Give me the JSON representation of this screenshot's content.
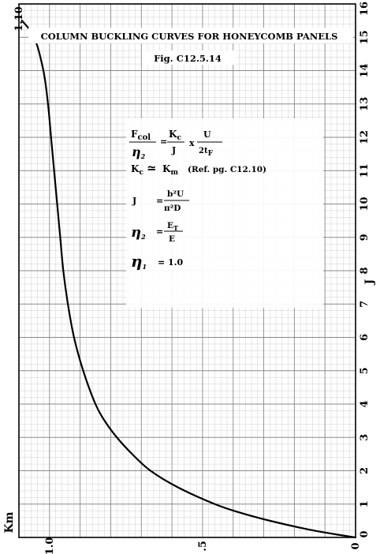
{
  "chart_data": {
    "type": "line",
    "title": "COLUMN BUCKLING CURVES FOR HONEYCOMB PANELS",
    "subtitle": "Fig. C12.5.14",
    "xlabel": "J",
    "ylabel": "Km",
    "xlim": [
      0,
      16
    ],
    "ylim": [
      0,
      1.1
    ],
    "x_ticks": [
      "0",
      "1",
      "2",
      "3",
      "4",
      "5",
      "6",
      "7",
      "8",
      "9",
      "10",
      "11",
      "12",
      "13",
      "14",
      "15",
      "16"
    ],
    "y_ticks": [
      {
        "value": 0,
        "label": "0"
      },
      {
        "value": 0.5,
        "label": ".5"
      },
      {
        "value": 1.0,
        "label": "1.0"
      }
    ],
    "ytop_label": "1.10",
    "grid": true,
    "series": [
      {
        "x": [
          0.0,
          0.1,
          0.25,
          0.5,
          0.75,
          1.0,
          1.5,
          2.0,
          2.5,
          3.0,
          3.5,
          4.0,
          5.0,
          6.0,
          7.0,
          8.0,
          9.0,
          10.0,
          11.0,
          12.0,
          13.0,
          14.0,
          15.0,
          15.5
        ],
        "y": [
          0.0,
          0.07,
          0.16,
          0.28,
          0.38,
          0.46,
          0.58,
          0.67,
          0.73,
          0.78,
          0.82,
          0.85,
          0.89,
          0.92,
          0.94,
          0.955,
          0.965,
          0.975,
          0.985,
          0.995,
          1.005,
          1.02,
          1.05,
          1.09
        ]
      }
    ],
    "annotations": {
      "f_col": "F",
      "f_col_sub": "col",
      "eta2_a": "η",
      "eta2_a_sub": "2",
      "eq": "=",
      "kc_num": "K",
      "kc_num_sub": "c",
      "j_den": "J",
      "times": "x",
      "u_num": "U",
      "tf_den": "2t",
      "tf_den_sub": "F",
      "kc_left": "K",
      "kc_left_sub": "c",
      "approx": "≃",
      "km_right": "K",
      "km_right_sub": "m",
      "ref": "(Ref. pg. C12.10)",
      "j_left": "J",
      "j_num": "b²U",
      "j_den2": "π²D",
      "eta2_b": "η",
      "eta2_b_sub": "2",
      "et_num": "E",
      "et_num_sub": "T",
      "e_den": "E",
      "eta1": "η",
      "eta1_sub": "1",
      "eta1_val": "= 1.0"
    }
  }
}
